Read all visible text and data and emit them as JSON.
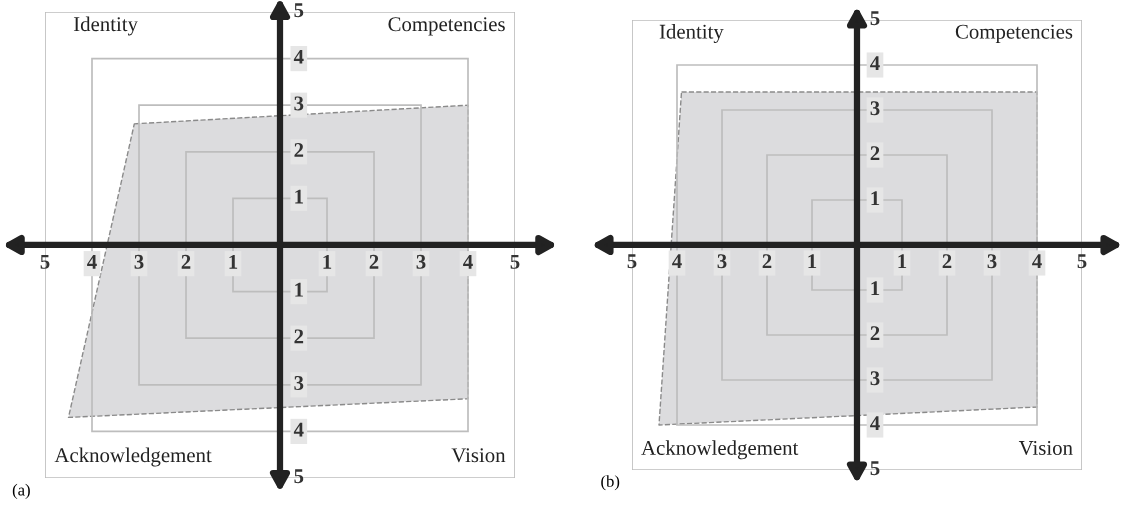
{
  "chart_data": [
    {
      "type": "area",
      "title": "(a)",
      "series": [
        {
          "color": "#dcdcde",
          "x": [
            -3.1,
            4.0,
            4.0,
            -4.5
          ],
          "values": [
            2.6,
            3.0,
            -3.3,
            -3.7
          ]
        }
      ],
      "xlim": [
        -5,
        5
      ],
      "ylim": [
        -5,
        5
      ],
      "xticks": [
        {
          "value": -5,
          "label": "5"
        },
        {
          "value": -4,
          "label": "4"
        },
        {
          "value": -3,
          "label": "3"
        },
        {
          "value": -2,
          "label": "2"
        },
        {
          "value": -1,
          "label": "1"
        },
        1,
        2,
        3,
        4,
        5
      ],
      "yticks": [
        {
          "value": -5,
          "label": "5"
        },
        {
          "value": -4,
          "label": "4"
        },
        {
          "value": -3,
          "label": "3"
        },
        {
          "value": -2,
          "label": "2"
        },
        {
          "value": -1,
          "label": "1"
        },
        1,
        2,
        3,
        4,
        5
      ],
      "line_style": "dashed",
      "annotations": [
        "Identity",
        "Competencies",
        "Acknowledgement",
        "Vision"
      ]
    },
    {
      "type": "area",
      "title": "(b)",
      "series": [
        {
          "color": "#dcdcde",
          "x": [
            -3.9,
            4.0,
            4.0,
            -4.4
          ],
          "values": [
            3.4,
            3.4,
            -3.6,
            -4.0
          ]
        }
      ],
      "xlim": [
        -5,
        5
      ],
      "ylim": [
        -5,
        5
      ],
      "xticks": [
        {
          "value": -5,
          "label": "5"
        },
        {
          "value": -4,
          "label": "4"
        },
        {
          "value": -3,
          "label": "3"
        },
        {
          "value": -2,
          "label": "2"
        },
        {
          "value": -1,
          "label": "1"
        },
        1,
        2,
        3,
        4,
        5
      ],
      "yticks": [
        {
          "value": -5,
          "label": "5"
        },
        {
          "value": -4,
          "label": "4"
        },
        {
          "value": -3,
          "label": "3"
        },
        {
          "value": -2,
          "label": "2"
        },
        {
          "value": -1,
          "label": "1"
        },
        1,
        2,
        3,
        4,
        5
      ],
      "line_style": "dashed",
      "annotations": [
        "Identity",
        "Competencies",
        "Acknowledgement",
        "Vision"
      ]
    }
  ]
}
